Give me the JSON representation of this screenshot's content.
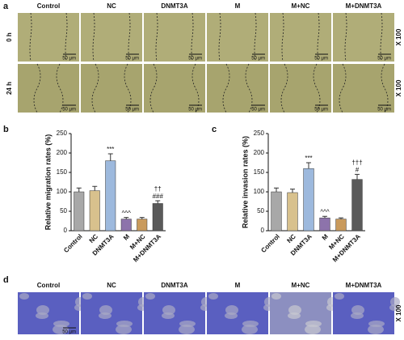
{
  "panel_labels": [
    "a",
    "b",
    "c",
    "d"
  ],
  "panel_a": {
    "columns": [
      "Control",
      "NC",
      "DNMT3A",
      "M",
      "M+NC",
      "M+DNMT3A"
    ],
    "rows": [
      "0 h",
      "24 h"
    ],
    "magnification": "X 100",
    "scale_bar": "50 μm"
  },
  "panel_d": {
    "columns": [
      "Control",
      "NC",
      "DNMT3A",
      "M",
      "M+NC",
      "M+DNMT3A"
    ],
    "magnification": "X 100",
    "scale_bar": "50 μm"
  },
  "chart_data": [
    {
      "type": "bar",
      "ylabel": "Relative migration rates (%)",
      "categories": [
        "Control",
        "NC",
        "DNMT3A",
        "M",
        "M+NC",
        "M+DNMT3A"
      ],
      "values": [
        100,
        103,
        180,
        30,
        30,
        70
      ],
      "errors": [
        10,
        11,
        18,
        4,
        4,
        7
      ],
      "colors": [
        "#a8a8a8",
        "#d8c18d",
        "#9db9dd",
        "#8d73ab",
        "#c99a5c",
        "#5a5a5a"
      ],
      "ylim": [
        0,
        250
      ],
      "yticks": [
        0,
        50,
        100,
        150,
        200,
        250
      ],
      "annotations": [
        {
          "category": "DNMT3A",
          "text": "***"
        },
        {
          "category": "M",
          "text": "^^^"
        },
        {
          "category": "M+DNMT3A",
          "text": "###"
        },
        {
          "category": "M+DNMT3A",
          "text": "††"
        }
      ]
    },
    {
      "type": "bar",
      "ylabel": "Relative invasion rates (%)",
      "categories": [
        "Control",
        "NC",
        "DNMT3A",
        "M",
        "M+NC",
        "M+DNMT3A"
      ],
      "values": [
        100,
        98,
        160,
        33,
        30,
        132
      ],
      "errors": [
        10,
        9,
        15,
        4,
        3,
        13
      ],
      "colors": [
        "#a8a8a8",
        "#d8c18d",
        "#9db9dd",
        "#8d73ab",
        "#c99a5c",
        "#5a5a5a"
      ],
      "ylim": [
        0,
        250
      ],
      "yticks": [
        0,
        50,
        100,
        150,
        200,
        250
      ],
      "annotations": [
        {
          "category": "DNMT3A",
          "text": "***"
        },
        {
          "category": "M",
          "text": "^^^"
        },
        {
          "category": "M+DNMT3A",
          "text": "#"
        },
        {
          "category": "M+DNMT3A",
          "text": "†††"
        }
      ]
    }
  ]
}
